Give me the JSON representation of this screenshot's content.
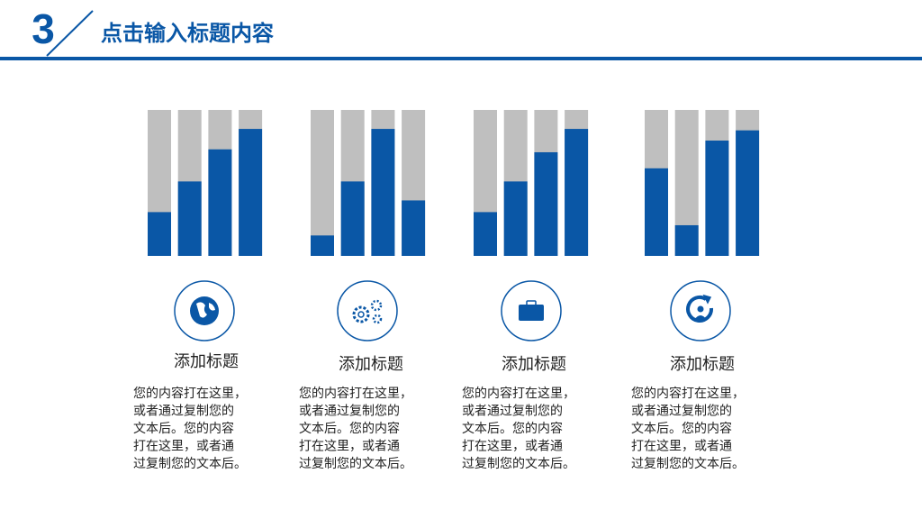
{
  "header": {
    "number": "3",
    "title": "点击输入标题内容"
  },
  "chart_data": [
    {
      "type": "bar",
      "values": [
        30,
        51,
        73,
        87
      ],
      "ylim": [
        0,
        100
      ],
      "color": "#0a57a6",
      "track_color": "#bfbfbf"
    },
    {
      "type": "bar",
      "values": [
        14,
        51,
        87,
        38
      ],
      "ylim": [
        0,
        100
      ],
      "color": "#0a57a6",
      "track_color": "#bfbfbf"
    },
    {
      "type": "bar",
      "values": [
        30,
        51,
        71,
        87
      ],
      "ylim": [
        0,
        100
      ],
      "color": "#0a57a6",
      "track_color": "#bfbfbf"
    },
    {
      "type": "bar",
      "values": [
        60,
        21,
        79,
        86
      ],
      "ylim": [
        0,
        100
      ],
      "color": "#0a57a6",
      "track_color": "#bfbfbf"
    }
  ],
  "cards": [
    {
      "title": "添加标题",
      "lines": [
        "您的内容打在这里，",
        "或者通过复制您的",
        "文本后。您的内容",
        "打在这里，或者通",
        "过复制您的文本后。"
      ]
    },
    {
      "title": "添加标题",
      "lines": [
        "您的内容打在这里，",
        "或者通过复制您的",
        "文本后。您的内容",
        "打在这里，或者通",
        "过复制您的文本后。"
      ]
    },
    {
      "title": "添加标题",
      "lines": [
        "您的内容打在这里，",
        "或者通过复制您的",
        "文本后。您的内容",
        "打在这里，或者通",
        "过复制您的文本后。"
      ]
    },
    {
      "title": "添加标题",
      "lines": [
        "您的内容打在这里，",
        "或者通过复制您的",
        "文本后。您的内容",
        "打在这里，或者通",
        "过复制您的文本后。"
      ]
    }
  ]
}
